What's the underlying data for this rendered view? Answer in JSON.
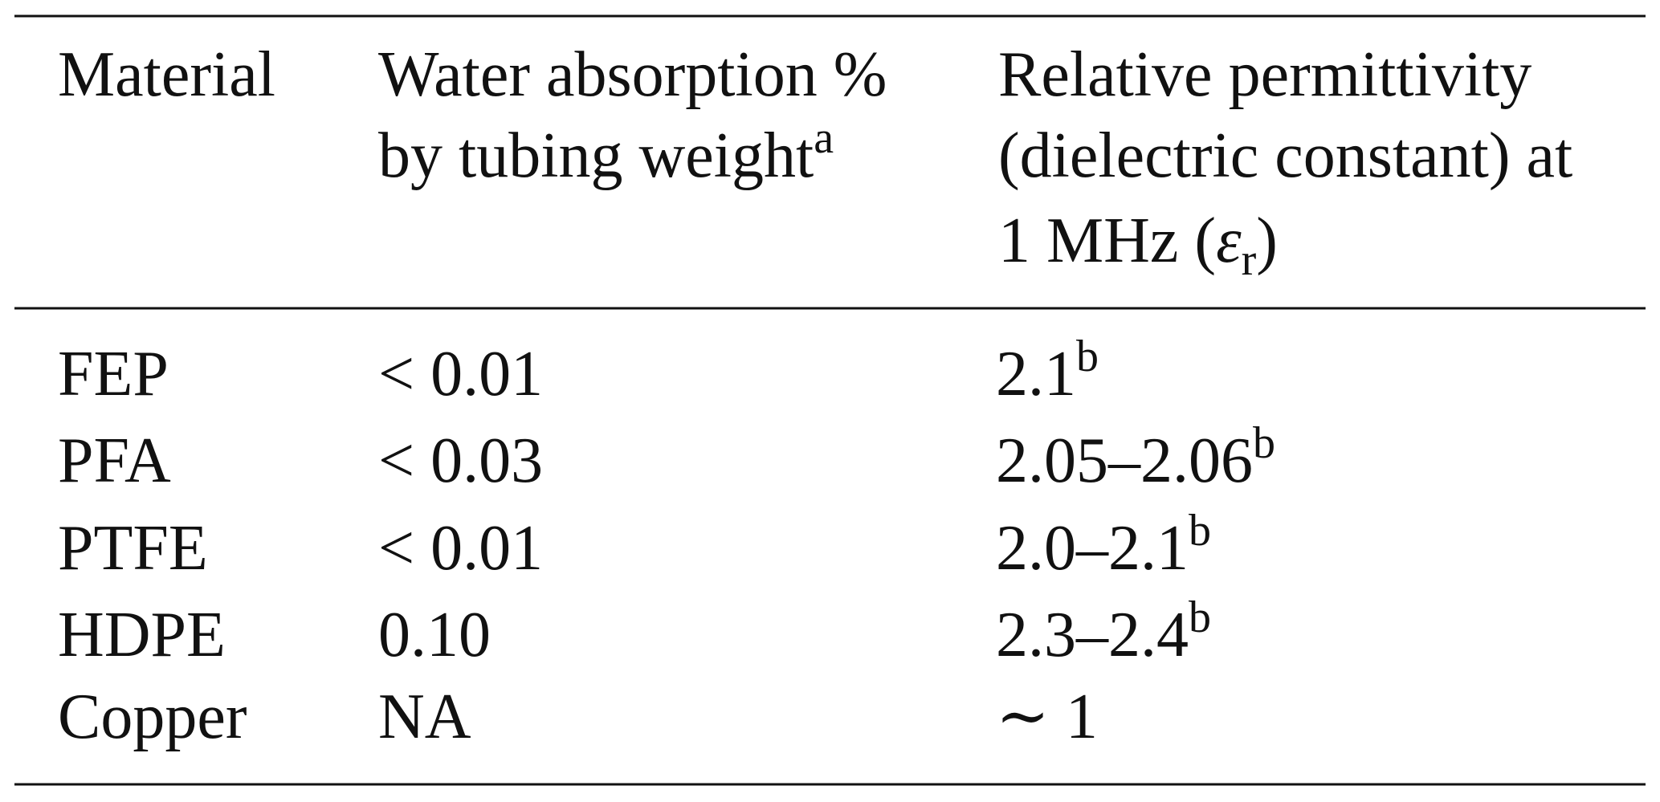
{
  "table": {
    "header": [
      [
        {
          "text": "Material"
        }
      ],
      [
        {
          "text": "Water absorption %"
        },
        {
          "text": "by tubing weight",
          "sup": "a"
        }
      ],
      [
        {
          "text": "Relative permittivity"
        },
        {
          "text": "(dielectric constant) at"
        },
        {
          "text": "1 MHz (",
          "symbol": "ε",
          "sub": "r",
          "tail": ")"
        }
      ]
    ],
    "rows": [
      [
        {
          "text": "FEP"
        },
        {
          "text": "< 0.01"
        },
        {
          "text": "2.1",
          "sup": "b"
        }
      ],
      [
        {
          "text": "PFA"
        },
        {
          "text": "< 0.03"
        },
        {
          "text": "2.05–2.06",
          "sup": "b"
        }
      ],
      [
        {
          "text": "PTFE"
        },
        {
          "text": "< 0.01"
        },
        {
          "text": "2.0–2.1",
          "sup": "b"
        }
      ],
      [
        {
          "text": "HDPE"
        },
        {
          "text": "0.10"
        },
        {
          "text": "2.3–2.4",
          "sup": "b"
        }
      ],
      [
        {
          "text": "Copper"
        },
        {
          "text": "NA"
        },
        {
          "text": "∼ 1"
        }
      ]
    ]
  }
}
